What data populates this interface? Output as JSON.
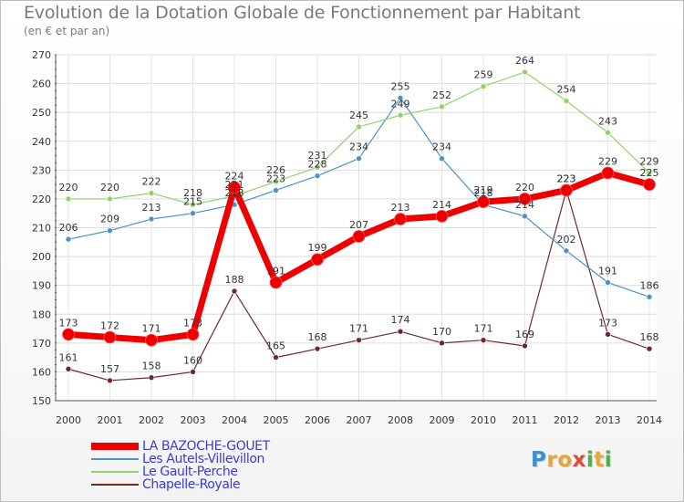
{
  "title": "Evolution de la Dotation Globale de Fonctionnement par Habitant",
  "subtitle": "(en € et par an)",
  "logo": {
    "letters": [
      "P",
      "r",
      "o",
      "x",
      "i",
      "t",
      "i"
    ],
    "colors": [
      "#3a8fd8",
      "#e8a63a",
      "#e8a63a",
      "#d94b3a",
      "#4cae4c",
      "#e8a63a",
      "#4cae4c"
    ]
  },
  "chart_data": {
    "type": "line",
    "title": "Evolution de la Dotation Globale de Fonctionnement par Habitant",
    "xlabel": "",
    "ylabel": "(en € et par an)",
    "ylim": [
      150,
      270
    ],
    "yticks": [
      "150",
      "160",
      "170",
      "180",
      "190",
      "200",
      "210",
      "220",
      "230",
      "240",
      "250",
      "260",
      "270"
    ],
    "categories": [
      "2000",
      "2001",
      "2002",
      "2003",
      "2004",
      "2005",
      "2006",
      "2007",
      "2008",
      "2009",
      "2010",
      "2011",
      "2012",
      "2013",
      "2014"
    ],
    "series": [
      {
        "name": "Chapelle-Royale",
        "color": "#6b2a2a",
        "values": [
          161,
          157,
          158,
          160,
          188,
          165,
          168,
          171,
          174,
          170,
          171,
          169,
          223,
          173,
          168
        ],
        "labels": [
          "161",
          "157",
          "158",
          "160",
          "188",
          "165",
          "168",
          "171",
          "174",
          "170",
          "171",
          "169",
          "223",
          "173",
          "168"
        ]
      },
      {
        "name": "Les Autels-Villevillon",
        "color": "#4a93c9",
        "values": [
          206,
          209,
          213,
          215,
          218,
          223,
          228,
          234,
          255,
          234,
          218,
          214,
          202,
          191,
          186
        ],
        "labels": [
          "206",
          "209",
          "213",
          "215",
          "218",
          "223",
          "228",
          "234",
          "255",
          "234",
          "218",
          "214",
          "202",
          "191",
          "186"
        ]
      },
      {
        "name": "Le Gault-Perche",
        "color": "#8fd36a",
        "values": [
          220,
          220,
          222,
          218,
          221,
          226,
          231,
          245,
          249,
          252,
          259,
          264,
          254,
          243,
          229
        ],
        "labels": [
          "220",
          "220",
          "222",
          "218",
          "221",
          "226",
          "231",
          "245",
          "249",
          "252",
          "259",
          "264",
          "254",
          "243",
          "229"
        ]
      },
      {
        "name": "LA BAZOCHE-GOUET",
        "color": "#ee0000",
        "values": [
          173,
          172,
          171,
          173,
          224,
          191,
          199,
          207,
          213,
          214,
          219,
          220,
          223,
          229,
          225
        ],
        "labels": [
          "173",
          "172",
          "171",
          "173",
          "224",
          "191",
          "199",
          "207",
          "213",
          "214",
          "219",
          "220",
          "223",
          "229",
          "225"
        ]
      }
    ],
    "legend": [
      {
        "label": "LA BAZOCHE-GOUET",
        "color": "#ee0000",
        "text_color": "#3b3bd6"
      },
      {
        "label": "Les Autels-Villevillon",
        "color": "#4a93c9",
        "text_color": "#3b3bd6"
      },
      {
        "label": "Le Gault-Perche",
        "color": "#8fd36a",
        "text_color": "#3b3bd6"
      },
      {
        "label": "Chapelle-Royale",
        "color": "#6b2a2a",
        "text_color": "#3b3bd6"
      }
    ],
    "legend_position": "bottom-left",
    "grid": true
  }
}
